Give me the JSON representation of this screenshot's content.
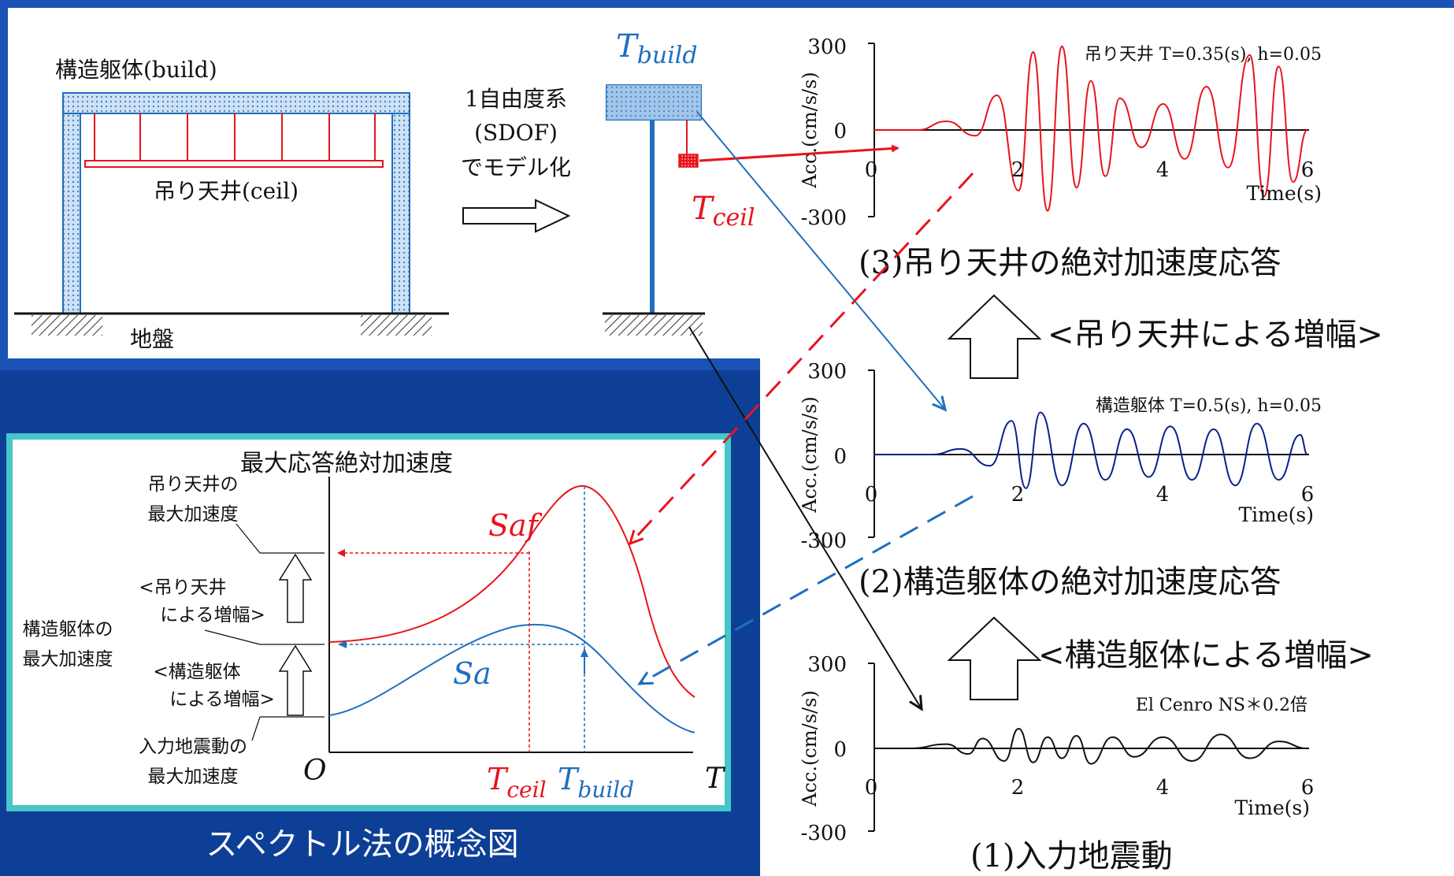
{
  "colors": {
    "background": "#1a52b5",
    "panel": "#ffffff",
    "teal_border": "#46c6c6",
    "ceil_red": "#e8141c",
    "build_blue": "#1f6fbf",
    "navy_wave": "#0a1f8a",
    "input_black": "#111111",
    "hatch": "#8ab4dd"
  },
  "top_panel": {
    "build_label": "構造躯体(build)",
    "ceil_label": "吊り天井(ceil)",
    "ground_label": "地盤",
    "sdof_line1": "1自由度系",
    "sdof_line2": "(SDOF)",
    "sdof_line3": "でモデル化",
    "t_build_base": "T",
    "t_build_sub": "build",
    "t_ceil_base": "T",
    "t_ceil_sub": "ceil"
  },
  "spectrum_panel": {
    "title": "最大応答絶対加速度",
    "ceil_max_l1": "吊り天井の",
    "ceil_max_l2": "最大加速度",
    "amp_ceil_l1": "<吊り天井",
    "amp_ceil_l2": "による増幅>",
    "build_max_l1": "構造躯体の",
    "build_max_l2": "最大加速度",
    "amp_build_l1": "<構造躯体",
    "amp_build_l2": "による増幅>",
    "input_max_l1": "入力地震動の",
    "input_max_l2": "最大加速度",
    "saf": "Saf",
    "sa": "Sa",
    "origin": "O",
    "t_axis": "T",
    "tceil_base": "T",
    "tceil_sub": "ceil",
    "tbuild_base": "T",
    "tbuild_sub": "build",
    "caption": "スペクトル法の概念図"
  },
  "charts": {
    "ylabel": "Acc.(cm/s/s)",
    "xlabel": "Time(s)",
    "ytick_top": "300",
    "ytick_mid": "0",
    "ytick_bottom": "-300",
    "xtick_0": "0",
    "xtick_2": "2",
    "xtick_4": "4",
    "xtick_6": "6",
    "chart3_legend": "吊り天井 T=0.35(s), h=0.05",
    "chart3_caption": "(3)吊り天井の絶対加速度応答",
    "chart2_legend": "構造躯体 T=0.5(s), h=0.05",
    "chart2_caption": "(2)構造躯体の絶対加速度応答",
    "chart1_legend": "El Cenro NS＊0.2倍",
    "chart1_caption": "(1)入力地震動",
    "amp_ceil": "<吊り天井による増幅>",
    "amp_build": "<構造躯体による増幅>"
  },
  "chart_data": [
    {
      "type": "line",
      "series": [
        {
          "name": "吊り天井 T=0.35(s), h=0.05",
          "x": [
            0,
            0.6,
            1.0,
            1.4,
            1.7,
            2.0,
            2.2,
            2.4,
            2.6,
            2.8,
            3.0,
            3.2,
            3.4,
            3.7,
            4.0,
            4.3,
            4.6,
            4.9,
            5.2,
            5.4,
            5.6,
            5.8,
            6.0
          ],
          "y": [
            0,
            0,
            30,
            -20,
            120,
            -210,
            270,
            -280,
            290,
            -200,
            170,
            -160,
            110,
            -60,
            90,
            -100,
            150,
            -130,
            260,
            -230,
            220,
            -180,
            0
          ]
        }
      ],
      "xlim": [
        0,
        6
      ],
      "ylim": [
        -300,
        300
      ],
      "xlabel": "Time(s)",
      "ylabel": "Acc.(cm/s/s)"
    },
    {
      "type": "line",
      "series": [
        {
          "name": "構造躯体 T=0.5(s), h=0.05",
          "x": [
            0,
            0.8,
            1.2,
            1.6,
            1.9,
            2.1,
            2.3,
            2.6,
            2.9,
            3.2,
            3.5,
            3.8,
            4.1,
            4.4,
            4.7,
            5.0,
            5.3,
            5.6,
            5.9,
            6.0
          ],
          "y": [
            0,
            0,
            20,
            -40,
            120,
            -120,
            150,
            -110,
            110,
            -90,
            90,
            -80,
            100,
            -90,
            90,
            -110,
            110,
            -90,
            70,
            0
          ]
        }
      ],
      "xlim": [
        0,
        6
      ],
      "ylim": [
        -300,
        300
      ],
      "xlabel": "Time(s)",
      "ylabel": "Acc.(cm/s/s)"
    },
    {
      "type": "line",
      "series": [
        {
          "name": "El Cenro NS＊0.2倍",
          "x": [
            0,
            0.5,
            1.0,
            1.3,
            1.5,
            1.8,
            2.0,
            2.2,
            2.4,
            2.6,
            2.8,
            3.0,
            3.3,
            3.6,
            4.0,
            4.4,
            4.8,
            5.2,
            5.6,
            6.0
          ],
          "y": [
            0,
            0,
            15,
            -20,
            35,
            -45,
            70,
            -50,
            40,
            -35,
            45,
            -55,
            40,
            -30,
            40,
            -45,
            50,
            -35,
            25,
            0
          ]
        }
      ],
      "xlim": [
        0,
        6
      ],
      "ylim": [
        -300,
        300
      ],
      "xlabel": "Time(s)",
      "ylabel": "Acc.(cm/s/s)"
    }
  ]
}
